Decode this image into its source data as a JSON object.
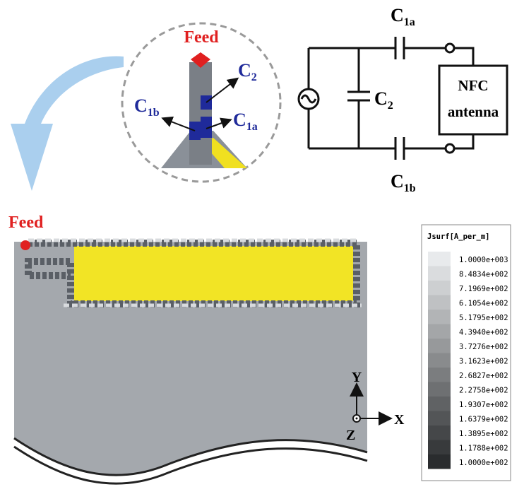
{
  "top_inset": {
    "feed": "Feed",
    "c2": {
      "main": "C",
      "sub": "2"
    },
    "c1b": {
      "main": "C",
      "sub": "1b"
    },
    "c1a": {
      "main": "C",
      "sub": "1a"
    }
  },
  "circuit": {
    "c1a": {
      "main": "C",
      "sub": "1a"
    },
    "c2": {
      "main": "C",
      "sub": "2"
    },
    "c1b": {
      "main": "C",
      "sub": "1b"
    },
    "load": [
      "NFC",
      "antenna"
    ]
  },
  "current_plot": {
    "feed": "Feed",
    "legend": {
      "title": "Jsurf[A_per_m]",
      "levels": [
        "1.0000e+003",
        "8.4834e+002",
        "7.1969e+002",
        "6.1054e+002",
        "5.1795e+002",
        "4.3940e+002",
        "3.7276e+002",
        "3.1623e+002",
        "2.6827e+002",
        "2.2758e+002",
        "1.9307e+002",
        "1.6379e+002",
        "1.3895e+002",
        "1.1788e+002",
        "1.0000e+002"
      ]
    },
    "axes": {
      "y": "Y",
      "x": "X",
      "z": "Z"
    }
  }
}
